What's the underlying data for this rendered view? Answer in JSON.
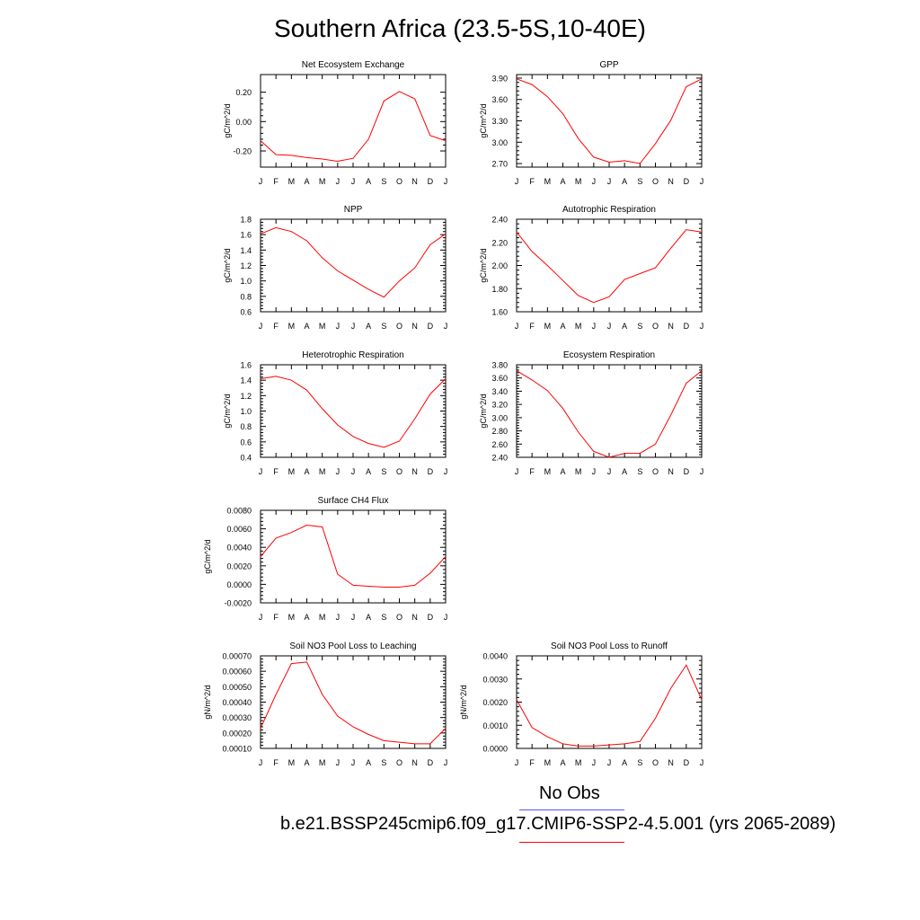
{
  "figure": {
    "title": "Southern Africa (23.5-5S,10-40E)",
    "legend": {
      "obs_label": "No Obs",
      "obs_color": "#5555ee",
      "run_label": "b.e21.BSSP245cmip6.f09_g17.CMIP6-SSP2-4.5.001 (yrs 2065-2089)",
      "run_color": "#ff0000"
    }
  },
  "chart_data": [
    {
      "type": "line",
      "title": "Net Ecosystem Exchange",
      "ylabel": "gC/m^2/d",
      "x": [
        "J",
        "F",
        "M",
        "A",
        "M",
        "J",
        "J",
        "A",
        "S",
        "O",
        "N",
        "D",
        "J"
      ],
      "ylim": [
        -0.31,
        0.32
      ],
      "yticks": [
        -0.2,
        0.0,
        0.2
      ],
      "ytick_labels": [
        "-0.20",
        "0.00",
        "0.20"
      ],
      "series": [
        {
          "color": "#ff0000",
          "values": [
            -0.13,
            -0.225,
            -0.23,
            -0.245,
            -0.255,
            -0.27,
            -0.25,
            -0.12,
            0.14,
            0.205,
            0.155,
            -0.095,
            -0.13
          ]
        }
      ]
    },
    {
      "type": "line",
      "title": "GPP",
      "ylabel": "gC/m^2/d",
      "x": [
        "J",
        "F",
        "M",
        "A",
        "M",
        "J",
        "J",
        "A",
        "S",
        "O",
        "N",
        "D",
        "J"
      ],
      "ylim": [
        2.65,
        3.95
      ],
      "yticks": [
        2.7,
        3.0,
        3.3,
        3.6,
        3.9
      ],
      "ytick_labels": [
        "2.70",
        "3.00",
        "3.30",
        "3.60",
        "3.90"
      ],
      "series": [
        {
          "color": "#ff0000",
          "values": [
            3.89,
            3.81,
            3.64,
            3.4,
            3.05,
            2.79,
            2.72,
            2.74,
            2.7,
            2.98,
            3.31,
            3.78,
            3.89
          ]
        }
      ]
    },
    {
      "type": "line",
      "title": "NPP",
      "ylabel": "gC/m^2/d",
      "x": [
        "J",
        "F",
        "M",
        "A",
        "M",
        "J",
        "J",
        "A",
        "S",
        "O",
        "N",
        "D",
        "J"
      ],
      "ylim": [
        0.6,
        1.8
      ],
      "yticks": [
        0.6,
        0.8,
        1.0,
        1.2,
        1.4,
        1.6,
        1.8
      ],
      "ytick_labels": [
        "0.6",
        "0.8",
        "1.0",
        "1.2",
        "1.4",
        "1.6",
        "1.8"
      ],
      "series": [
        {
          "color": "#ff0000",
          "values": [
            1.61,
            1.69,
            1.64,
            1.52,
            1.3,
            1.13,
            1.01,
            0.89,
            0.79,
            1.0,
            1.17,
            1.47,
            1.61
          ]
        }
      ]
    },
    {
      "type": "line",
      "title": "Autotrophic Respiration",
      "ylabel": "gC/m^2/d",
      "x": [
        "J",
        "F",
        "M",
        "A",
        "M",
        "J",
        "J",
        "A",
        "S",
        "O",
        "N",
        "D",
        "J"
      ],
      "ylim": [
        1.6,
        2.4
      ],
      "yticks": [
        1.6,
        1.8,
        2.0,
        2.2,
        2.4
      ],
      "ytick_labels": [
        "1.60",
        "1.80",
        "2.00",
        "2.20",
        "2.40"
      ],
      "series": [
        {
          "color": "#ff0000",
          "values": [
            2.29,
            2.12,
            2.0,
            1.87,
            1.74,
            1.68,
            1.73,
            1.88,
            1.93,
            1.98,
            2.15,
            2.31,
            2.29
          ]
        }
      ]
    },
    {
      "type": "line",
      "title": "Heterotrophic Respiration",
      "ylabel": "gC/m^2/d",
      "x": [
        "J",
        "F",
        "M",
        "A",
        "M",
        "J",
        "J",
        "A",
        "S",
        "O",
        "N",
        "D",
        "J"
      ],
      "ylim": [
        0.4,
        1.6
      ],
      "yticks": [
        0.4,
        0.6,
        0.8,
        1.0,
        1.2,
        1.4,
        1.6
      ],
      "ytick_labels": [
        "0.4",
        "0.6",
        "0.8",
        "1.0",
        "1.2",
        "1.4",
        "1.6"
      ],
      "series": [
        {
          "color": "#ff0000",
          "values": [
            1.42,
            1.45,
            1.4,
            1.27,
            1.03,
            0.82,
            0.67,
            0.58,
            0.53,
            0.61,
            0.9,
            1.22,
            1.42
          ]
        }
      ]
    },
    {
      "type": "line",
      "title": "Ecosystem Respiration",
      "ylabel": "gC/m^2/d",
      "x": [
        "J",
        "F",
        "M",
        "A",
        "M",
        "J",
        "J",
        "A",
        "S",
        "O",
        "N",
        "D",
        "J"
      ],
      "ylim": [
        2.4,
        3.8
      ],
      "yticks": [
        2.4,
        2.6,
        2.8,
        3.0,
        3.2,
        3.4,
        3.6,
        3.8
      ],
      "ytick_labels": [
        "2.40",
        "2.60",
        "2.80",
        "3.00",
        "3.20",
        "3.40",
        "3.60",
        "3.80"
      ],
      "series": [
        {
          "color": "#ff0000",
          "values": [
            3.71,
            3.57,
            3.41,
            3.14,
            2.78,
            2.49,
            2.4,
            2.46,
            2.46,
            2.6,
            3.04,
            3.52,
            3.71
          ]
        }
      ]
    },
    {
      "type": "line",
      "title": "Surface CH4 Flux",
      "ylabel": "gC/m^2/d",
      "x": [
        "J",
        "F",
        "M",
        "A",
        "M",
        "J",
        "J",
        "A",
        "S",
        "O",
        "N",
        "D",
        "J"
      ],
      "ylim": [
        -0.002,
        0.008
      ],
      "yticks": [
        -0.002,
        0.0,
        0.002,
        0.004,
        0.006,
        0.008
      ],
      "ytick_labels": [
        "-0.0020",
        "0.0000",
        "0.0020",
        "0.0040",
        "0.0060",
        "0.0080"
      ],
      "series": [
        {
          "color": "#ff0000",
          "values": [
            0.003,
            0.005,
            0.0056,
            0.0064,
            0.0062,
            0.0011,
            -0.0001,
            -0.0002,
            -0.0003,
            -0.0003,
            -0.0001,
            0.0012,
            0.003
          ]
        }
      ]
    },
    {
      "type": "line",
      "title": "Soil NO3 Pool Loss to Leaching",
      "ylabel": "gN/m^2/d",
      "x": [
        "J",
        "F",
        "M",
        "A",
        "M",
        "J",
        "J",
        "A",
        "S",
        "O",
        "N",
        "D",
        "J"
      ],
      "ylim": [
        0.0001,
        0.0007
      ],
      "yticks": [
        0.0001,
        0.0002,
        0.0003,
        0.0004,
        0.0005,
        0.0006,
        0.0007
      ],
      "ytick_labels": [
        "0.00010",
        "0.00020",
        "0.00030",
        "0.00040",
        "0.00050",
        "0.00060",
        "0.00070"
      ],
      "series": [
        {
          "color": "#ff0000",
          "values": [
            0.00023,
            0.00045,
            0.00065,
            0.00066,
            0.00045,
            0.00031,
            0.00024,
            0.00019,
            0.00015,
            0.00014,
            0.00013,
            0.00013,
            0.00023
          ]
        }
      ]
    },
    {
      "type": "line",
      "title": "Soil NO3 Pool Loss to Runoff",
      "ylabel": "gN/m^2/d",
      "x": [
        "J",
        "F",
        "M",
        "A",
        "M",
        "J",
        "J",
        "A",
        "S",
        "O",
        "N",
        "D",
        "J"
      ],
      "ylim": [
        0.0,
        0.004
      ],
      "yticks": [
        0.0,
        0.001,
        0.002,
        0.003,
        0.004
      ],
      "ytick_labels": [
        "0.0000",
        "0.0010",
        "0.0020",
        "0.0030",
        "0.0040"
      ],
      "series": [
        {
          "color": "#ff0000",
          "values": [
            0.0021,
            0.0009,
            0.0005,
            0.0002,
            0.0001,
            0.0001,
            0.00015,
            0.0002,
            0.0003,
            0.0013,
            0.0026,
            0.0036,
            0.0021
          ]
        }
      ]
    }
  ]
}
